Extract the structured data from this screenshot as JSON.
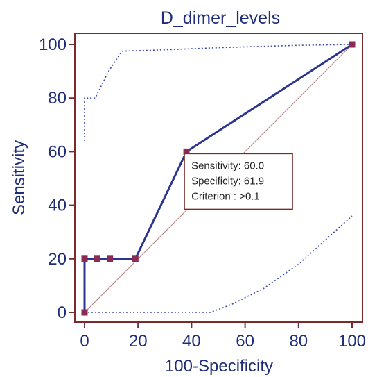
{
  "chart_data": {
    "type": "line",
    "title": "D_dimer_levels",
    "xlabel": "100-Specificity",
    "ylabel": "Sensitivity",
    "xlim": [
      0,
      100
    ],
    "ylim": [
      0,
      100
    ],
    "xticks": [
      "0",
      "20",
      "40",
      "60",
      "80",
      "100"
    ],
    "yticks": [
      "0",
      "20",
      "40",
      "60",
      "80",
      "100"
    ],
    "grid": false,
    "series": [
      {
        "values": [
          [
            0,
            0
          ],
          [
            0,
            20
          ],
          [
            4.8,
            20
          ],
          [
            9.5,
            20
          ],
          [
            19,
            20
          ],
          [
            38.1,
            60
          ],
          [
            100,
            100
          ]
        ]
      }
    ],
    "confidence_upper": [
      [
        0,
        64
      ],
      [
        0,
        80
      ],
      [
        4,
        80
      ],
      [
        9,
        90
      ],
      [
        14,
        97.5
      ],
      [
        30,
        98
      ],
      [
        50,
        98.8
      ],
      [
        80,
        99.7
      ],
      [
        100,
        100
      ]
    ],
    "confidence_lower": [
      [
        0,
        0
      ],
      [
        20,
        0
      ],
      [
        47,
        0
      ],
      [
        55,
        3
      ],
      [
        67,
        9
      ],
      [
        80,
        18
      ],
      [
        100,
        36
      ]
    ],
    "reference_line": [
      [
        0,
        0
      ],
      [
        100,
        100
      ]
    ],
    "annotation": {
      "lines": [
        "Sensitivity: 60.0",
        "Specificity: 61.9",
        "Criterion : >0.1"
      ]
    },
    "colors": {
      "line": "#2b3590",
      "marker": "#8b2a52",
      "frame": "#7a2a2a",
      "reference": "#c09090",
      "confidence": "#3a4aa8",
      "text": "#1f2d78"
    }
  }
}
